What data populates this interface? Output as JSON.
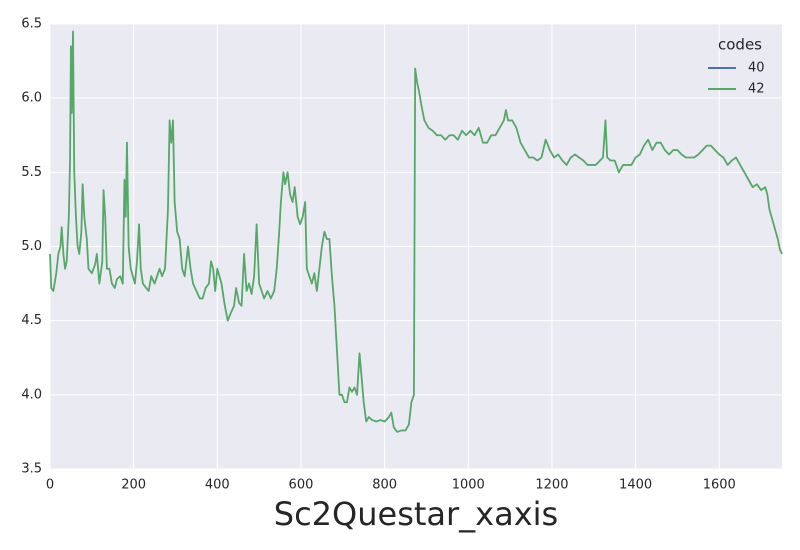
{
  "chart_data": {
    "type": "line",
    "xlabel": "Sc2Questar_xaxis",
    "legend_title": "codes",
    "legend": "upper right",
    "grid": true,
    "xlim": [
      0,
      1750
    ],
    "xticks": [
      0,
      200,
      400,
      600,
      800,
      1000,
      1200,
      1400,
      1600
    ],
    "ylim": [
      3.5,
      6.5
    ],
    "yticks": [
      3.5,
      {
        "value": 4,
        "label": "4.0"
      },
      4.5,
      {
        "value": 5,
        "label": "5.0"
      },
      5.5,
      {
        "value": 6,
        "label": "6.0"
      },
      6.5
    ],
    "series": [
      {
        "name": "40",
        "color": "#4c72b0",
        "x": [],
        "values": []
      },
      {
        "name": "42",
        "color": "#55a868",
        "x": [
          0,
          3,
          8,
          15,
          20,
          25,
          28,
          32,
          36,
          40,
          45,
          48,
          50,
          52,
          55,
          58,
          62,
          66,
          70,
          75,
          78,
          82,
          88,
          92,
          100,
          108,
          112,
          118,
          125,
          128,
          132,
          136,
          142,
          148,
          155,
          160,
          168,
          174,
          178,
          181,
          184,
          188,
          193,
          198,
          203,
          208,
          213,
          217,
          222,
          230,
          236,
          242,
          250,
          256,
          262,
          268,
          275,
          282,
          286,
          290,
          294,
          298,
          304,
          310,
          316,
          322,
          330,
          336,
          342,
          350,
          358,
          365,
          372,
          380,
          385,
          390,
          395,
          400,
          405,
          410,
          418,
          425,
          432,
          440,
          445,
          452,
          458,
          464,
          470,
          476,
          482,
          488,
          494,
          500,
          506,
          512,
          520,
          528,
          536,
          542,
          548,
          552,
          558,
          562,
          568,
          574,
          580,
          585,
          592,
          598,
          604,
          610,
          614,
          620,
          626,
          632,
          638,
          644,
          650,
          656,
          662,
          668,
          674,
          680,
          686,
          692,
          698,
          704,
          710,
          716,
          722,
          728,
          734,
          740,
          744,
          750,
          756,
          762,
          770,
          780,
          790,
          800,
          810,
          816,
          822,
          830,
          840,
          850,
          858,
          864,
          870,
          873,
          878,
          882,
          888,
          895,
          905,
          915,
          925,
          935,
          945,
          955,
          965,
          975,
          985,
          995,
          1005,
          1015,
          1025,
          1035,
          1045,
          1055,
          1065,
          1075,
          1085,
          1090,
          1095,
          1105,
          1115,
          1125,
          1135,
          1145,
          1155,
          1165,
          1175,
          1185,
          1195,
          1205,
          1215,
          1225,
          1235,
          1245,
          1255,
          1265,
          1275,
          1285,
          1295,
          1305,
          1315,
          1322,
          1328,
          1332,
          1340,
          1350,
          1360,
          1370,
          1380,
          1390,
          1400,
          1410,
          1420,
          1430,
          1440,
          1450,
          1460,
          1470,
          1480,
          1490,
          1500,
          1510,
          1520,
          1530,
          1540,
          1550,
          1560,
          1570,
          1580,
          1590,
          1600,
          1610,
          1620,
          1630,
          1640,
          1650,
          1660,
          1670,
          1680,
          1690,
          1700,
          1710,
          1715,
          1720,
          1730,
          1740,
          1745,
          1750
        ],
        "values": [
          4.95,
          4.72,
          4.7,
          4.82,
          4.95,
          5.0,
          5.13,
          4.95,
          4.85,
          4.9,
          5.2,
          5.6,
          6.35,
          5.9,
          6.45,
          5.5,
          5.2,
          5.0,
          4.95,
          5.1,
          5.42,
          5.2,
          5.05,
          4.85,
          4.82,
          4.88,
          4.95,
          4.75,
          4.9,
          5.38,
          5.2,
          4.85,
          4.85,
          4.75,
          4.72,
          4.78,
          4.8,
          4.75,
          5.45,
          5.2,
          5.7,
          5.0,
          4.85,
          4.8,
          4.75,
          4.9,
          5.15,
          4.85,
          4.75,
          4.72,
          4.7,
          4.8,
          4.75,
          4.8,
          4.85,
          4.8,
          4.85,
          5.25,
          5.85,
          5.7,
          5.85,
          5.3,
          5.1,
          5.05,
          4.85,
          4.8,
          5.0,
          4.85,
          4.75,
          4.7,
          4.65,
          4.65,
          4.72,
          4.75,
          4.9,
          4.85,
          4.7,
          4.85,
          4.8,
          4.75,
          4.6,
          4.5,
          4.55,
          4.6,
          4.72,
          4.62,
          4.6,
          4.95,
          4.7,
          4.75,
          4.68,
          4.8,
          5.15,
          4.75,
          4.7,
          4.65,
          4.7,
          4.65,
          4.7,
          4.85,
          5.1,
          5.3,
          5.5,
          5.42,
          5.5,
          5.35,
          5.3,
          5.4,
          5.2,
          5.15,
          5.2,
          5.3,
          4.85,
          4.8,
          4.75,
          4.82,
          4.7,
          4.85,
          5.0,
          5.1,
          5.05,
          5.05,
          4.8,
          4.6,
          4.3,
          4.0,
          4.0,
          3.95,
          3.95,
          4.05,
          4.02,
          4.05,
          4.0,
          4.28,
          4.15,
          3.95,
          3.82,
          3.85,
          3.83,
          3.82,
          3.83,
          3.82,
          3.85,
          3.88,
          3.78,
          3.75,
          3.76,
          3.76,
          3.8,
          3.95,
          4.0,
          6.2,
          6.1,
          6.05,
          5.95,
          5.85,
          5.8,
          5.78,
          5.75,
          5.75,
          5.72,
          5.75,
          5.75,
          5.72,
          5.78,
          5.75,
          5.78,
          5.75,
          5.8,
          5.7,
          5.7,
          5.75,
          5.75,
          5.8,
          5.85,
          5.92,
          5.85,
          5.85,
          5.8,
          5.7,
          5.65,
          5.6,
          5.6,
          5.58,
          5.6,
          5.72,
          5.65,
          5.6,
          5.62,
          5.58,
          5.55,
          5.6,
          5.62,
          5.6,
          5.58,
          5.55,
          5.55,
          5.55,
          5.58,
          5.6,
          5.85,
          5.6,
          5.58,
          5.58,
          5.5,
          5.55,
          5.55,
          5.55,
          5.6,
          5.62,
          5.68,
          5.72,
          5.65,
          5.7,
          5.7,
          5.65,
          5.62,
          5.65,
          5.65,
          5.62,
          5.6,
          5.6,
          5.6,
          5.62,
          5.65,
          5.68,
          5.68,
          5.65,
          5.62,
          5.6,
          5.55,
          5.58,
          5.6,
          5.55,
          5.5,
          5.45,
          5.4,
          5.42,
          5.38,
          5.4,
          5.35,
          5.25,
          5.15,
          5.05,
          4.98,
          4.95
        ]
      }
    ]
  }
}
